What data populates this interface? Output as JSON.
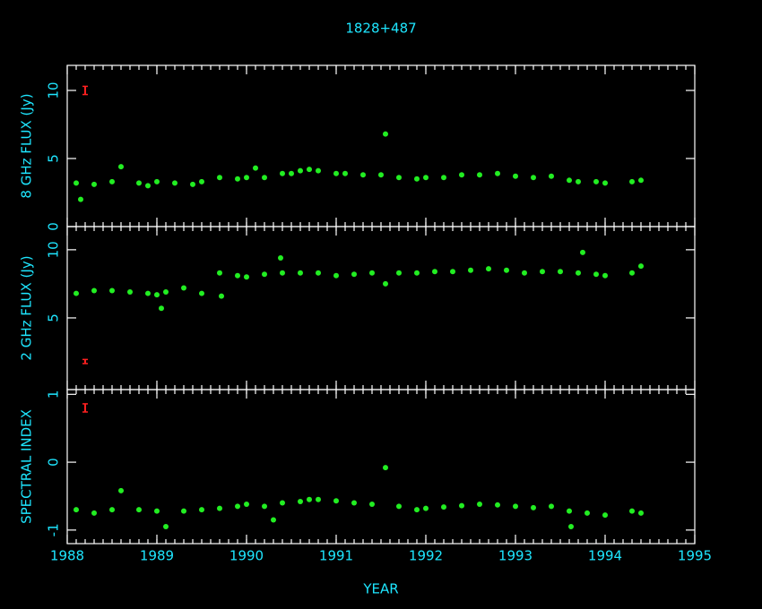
{
  "chart_data": [
    {
      "type": "scatter",
      "title": "1828+487",
      "ylabel": "8 GHz FLUX (Jy)",
      "color": "#22ee22",
      "grid": false,
      "xlim": [
        1988,
        1995
      ],
      "xticks": [
        1988,
        1989,
        1990,
        1991,
        1992,
        1993,
        1994,
        1995
      ],
      "ylim": [
        0,
        11.84
      ],
      "yticks": [
        0,
        5,
        10
      ],
      "x": [
        1988.1,
        1988.15,
        1988.3,
        1988.5,
        1988.6,
        1988.8,
        1988.9,
        1989.0,
        1989.2,
        1989.4,
        1989.5,
        1989.7,
        1989.9,
        1990.0,
        1990.1,
        1990.2,
        1990.4,
        1990.5,
        1990.6,
        1990.7,
        1990.8,
        1991.0,
        1991.1,
        1991.3,
        1991.5,
        1991.55,
        1991.7,
        1991.9,
        1992.0,
        1992.2,
        1992.4,
        1992.6,
        1992.8,
        1993.0,
        1993.2,
        1993.4,
        1993.6,
        1993.7,
        1993.9,
        1994.0,
        1994.3,
        1994.4
      ],
      "y": [
        3.2,
        2.0,
        3.1,
        3.3,
        4.4,
        3.2,
        3.0,
        3.3,
        3.2,
        3.1,
        3.3,
        3.6,
        3.5,
        3.6,
        4.3,
        3.6,
        3.9,
        3.9,
        4.1,
        4.2,
        4.1,
        3.9,
        3.9,
        3.8,
        3.8,
        6.8,
        3.6,
        3.5,
        3.6,
        3.6,
        3.8,
        3.8,
        3.9,
        3.7,
        3.6,
        3.7,
        3.4,
        3.3,
        3.3,
        3.2,
        3.3,
        3.4
      ],
      "error_marker": {
        "x": 1988.2,
        "y": 10,
        "err": 0.3,
        "color": "#ff2020"
      }
    },
    {
      "type": "scatter",
      "ylabel": "2 GHz FLUX (Jy)",
      "color": "#22ee22",
      "xlim": [
        1988,
        1995
      ],
      "xticks": [
        1988,
        1989,
        1990,
        1991,
        1992,
        1993,
        1994,
        1995
      ],
      "ylim": [
        -0.26,
        11.7
      ],
      "yticks": [
        5,
        10
      ],
      "x": [
        1988.1,
        1988.3,
        1988.5,
        1988.7,
        1988.9,
        1989.0,
        1989.05,
        1989.1,
        1989.3,
        1989.5,
        1989.7,
        1989.72,
        1989.9,
        1990.0,
        1990.2,
        1990.38,
        1990.4,
        1990.6,
        1990.8,
        1991.0,
        1991.2,
        1991.4,
        1991.55,
        1991.7,
        1991.9,
        1992.1,
        1992.3,
        1992.5,
        1992.7,
        1992.9,
        1993.1,
        1993.3,
        1993.5,
        1993.7,
        1993.75,
        1993.9,
        1994.0,
        1994.3,
        1994.4
      ],
      "y": [
        6.8,
        7.0,
        7.0,
        6.9,
        6.8,
        6.7,
        5.7,
        6.9,
        7.2,
        6.8,
        8.3,
        6.6,
        8.1,
        8.0,
        8.2,
        9.4,
        8.3,
        8.3,
        8.3,
        8.1,
        8.2,
        8.3,
        7.5,
        8.3,
        8.3,
        8.4,
        8.4,
        8.5,
        8.6,
        8.5,
        8.3,
        8.4,
        8.4,
        8.3,
        9.8,
        8.2,
        8.1,
        8.3,
        8.8
      ],
      "error_marker": {
        "x": 1988.2,
        "y": 1.8,
        "err": 0.15,
        "color": "#ff2020"
      }
    },
    {
      "type": "scatter",
      "ylabel": "SPECTRAL INDEX",
      "xlabel": "YEAR",
      "color": "#22ee22",
      "xlim": [
        1988,
        1995
      ],
      "xticks": [
        1988,
        1989,
        1990,
        1991,
        1992,
        1993,
        1994,
        1995
      ],
      "ylim": [
        -1.2,
        1.07
      ],
      "yticks": [
        -1,
        0,
        1
      ],
      "x": [
        1988.1,
        1988.3,
        1988.5,
        1988.6,
        1988.8,
        1989.0,
        1989.1,
        1989.3,
        1989.5,
        1989.7,
        1989.9,
        1990.0,
        1990.2,
        1990.3,
        1990.4,
        1990.6,
        1990.7,
        1990.8,
        1991.0,
        1991.2,
        1991.4,
        1991.55,
        1991.7,
        1991.9,
        1992.0,
        1992.2,
        1992.4,
        1992.6,
        1992.8,
        1993.0,
        1993.2,
        1993.4,
        1993.6,
        1993.62,
        1993.8,
        1994.0,
        1994.3,
        1994.4
      ],
      "y": [
        -0.7,
        -0.75,
        -0.7,
        -0.42,
        -0.7,
        -0.72,
        -0.95,
        -0.72,
        -0.7,
        -0.68,
        -0.65,
        -0.62,
        -0.65,
        -0.85,
        -0.6,
        -0.58,
        -0.55,
        -0.55,
        -0.57,
        -0.6,
        -0.62,
        -0.08,
        -0.65,
        -0.7,
        -0.68,
        -0.66,
        -0.64,
        -0.62,
        -0.63,
        -0.65,
        -0.67,
        -0.65,
        -0.72,
        -0.95,
        -0.75,
        -0.78,
        -0.72,
        -0.75
      ],
      "error_marker": {
        "x": 1988.2,
        "y": 0.8,
        "err": 0.06,
        "color": "#ff2020"
      }
    }
  ]
}
